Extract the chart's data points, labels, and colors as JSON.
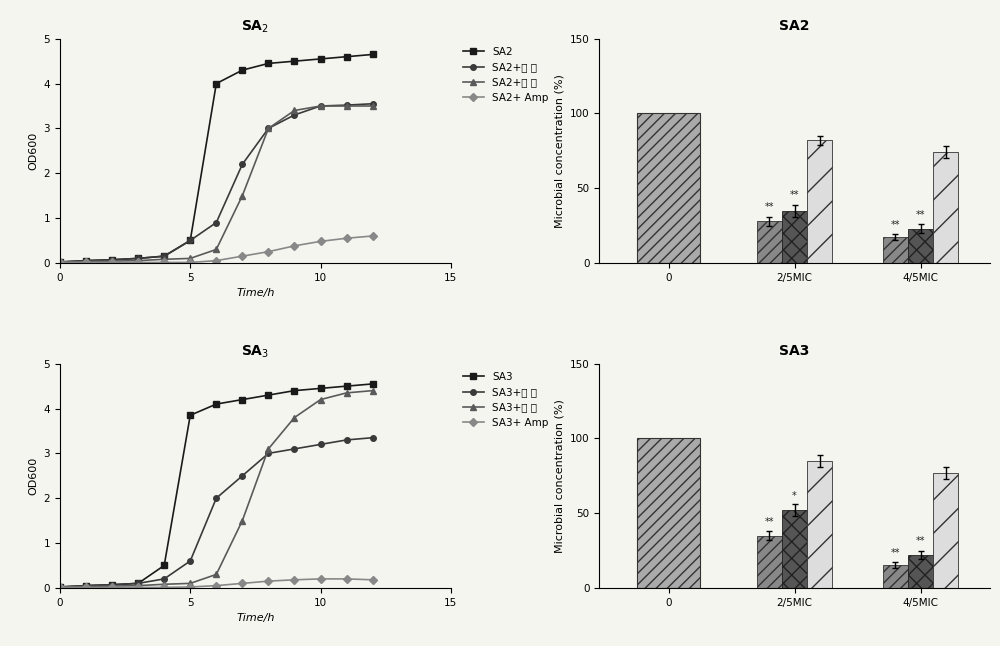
{
  "fig_width": 10.0,
  "fig_height": 6.46,
  "bg_color": "#f5f5f0",
  "sa2_line_title": "SA$_2$",
  "sa3_line_title": "SA$_3$",
  "sa2_bar_title": "SA2",
  "sa3_bar_title": "SA3",
  "line_xlabel": "Time/h",
  "line_ylabel": "OD600",
  "bar_ylabel": "Microbial concentration (%)",
  "sa2_lines": {
    "SA2": {
      "x": [
        0,
        1,
        2,
        3,
        4,
        5,
        6,
        7,
        8,
        9,
        10,
        11,
        12
      ],
      "y": [
        0.02,
        0.05,
        0.07,
        0.1,
        0.15,
        0.5,
        4.0,
        4.3,
        4.45,
        4.5,
        4.55,
        4.6,
        4.65
      ]
    },
    "SA2+水提": {
      "x": [
        0,
        1,
        2,
        3,
        4,
        5,
        6,
        7,
        8,
        9,
        10,
        11,
        12
      ],
      "y": [
        0.02,
        0.05,
        0.07,
        0.1,
        0.15,
        0.5,
        0.9,
        2.2,
        3.0,
        3.3,
        3.5,
        3.52,
        3.55
      ]
    },
    "SA2+醇提": {
      "x": [
        0,
        1,
        2,
        3,
        4,
        5,
        6,
        7,
        8,
        9,
        10,
        11,
        12
      ],
      "y": [
        0.02,
        0.03,
        0.04,
        0.05,
        0.08,
        0.1,
        0.3,
        1.5,
        3.0,
        3.4,
        3.5,
        3.5,
        3.5
      ]
    },
    "SA2+ Amp": {
      "x": [
        0,
        1,
        2,
        3,
        4,
        5,
        6,
        7,
        8,
        9,
        10,
        11,
        12
      ],
      "y": [
        0.01,
        0.01,
        0.01,
        0.01,
        0.01,
        0.01,
        0.05,
        0.15,
        0.25,
        0.38,
        0.48,
        0.55,
        0.6
      ]
    }
  },
  "sa3_lines": {
    "SA3": {
      "x": [
        0,
        1,
        2,
        3,
        4,
        5,
        6,
        7,
        8,
        9,
        10,
        11,
        12
      ],
      "y": [
        0.02,
        0.05,
        0.07,
        0.1,
        0.5,
        3.85,
        4.1,
        4.2,
        4.3,
        4.4,
        4.45,
        4.5,
        4.55
      ]
    },
    "SA3+水提": {
      "x": [
        0,
        1,
        2,
        3,
        4,
        5,
        6,
        7,
        8,
        9,
        10,
        11,
        12
      ],
      "y": [
        0.02,
        0.05,
        0.07,
        0.1,
        0.2,
        0.6,
        2.0,
        2.5,
        3.0,
        3.1,
        3.2,
        3.3,
        3.35
      ]
    },
    "SA3+醇提": {
      "x": [
        0,
        1,
        2,
        3,
        4,
        5,
        6,
        7,
        8,
        9,
        10,
        11,
        12
      ],
      "y": [
        0.02,
        0.03,
        0.04,
        0.05,
        0.08,
        0.1,
        0.3,
        1.5,
        3.1,
        3.8,
        4.2,
        4.35,
        4.4
      ]
    },
    "SA3+ Amp": {
      "x": [
        0,
        1,
        2,
        3,
        4,
        5,
        6,
        7,
        8,
        9,
        10,
        11,
        12
      ],
      "y": [
        0.01,
        0.01,
        0.01,
        0.01,
        0.01,
        0.02,
        0.05,
        0.1,
        0.15,
        0.18,
        0.2,
        0.2,
        0.18
      ]
    }
  },
  "sa2_bar_data": {
    "groups": [
      "0",
      "2/5MIC",
      "4/5MIC"
    ],
    "ethanol": [
      100,
      28,
      17
    ],
    "aqueous": [
      0,
      35,
      23
    ],
    "amp": [
      0,
      82,
      74
    ],
    "ethanol_err": [
      0,
      3,
      2
    ],
    "aqueous_err": [
      0,
      4,
      3
    ],
    "amp_err": [
      0,
      3,
      4
    ]
  },
  "sa3_bar_data": {
    "groups": [
      "0",
      "2/5MIC",
      "4/5MIC"
    ],
    "ethanol": [
      100,
      35,
      15
    ],
    "aqueous": [
      0,
      52,
      22
    ],
    "amp": [
      0,
      85,
      77
    ],
    "ethanol_err": [
      0,
      3,
      2
    ],
    "aqueous_err": [
      0,
      4,
      3
    ],
    "amp_err": [
      0,
      4,
      4
    ]
  },
  "line_xlim": [
    0,
    15
  ],
  "line_ylim": [
    0,
    5
  ],
  "line_xticks": [
    0,
    5,
    10,
    15
  ],
  "line_yticks": [
    0,
    1,
    2,
    3,
    4,
    5
  ],
  "bar_ylim": [
    0,
    150
  ],
  "bar_yticks": [
    0,
    50,
    100,
    150
  ],
  "marker_size": 4,
  "line_width": 1.2,
  "bar_width": 0.2,
  "legend_fontsize": 7.5,
  "axis_fontsize": 8,
  "title_fontsize": 10,
  "tick_fontsize": 7.5
}
